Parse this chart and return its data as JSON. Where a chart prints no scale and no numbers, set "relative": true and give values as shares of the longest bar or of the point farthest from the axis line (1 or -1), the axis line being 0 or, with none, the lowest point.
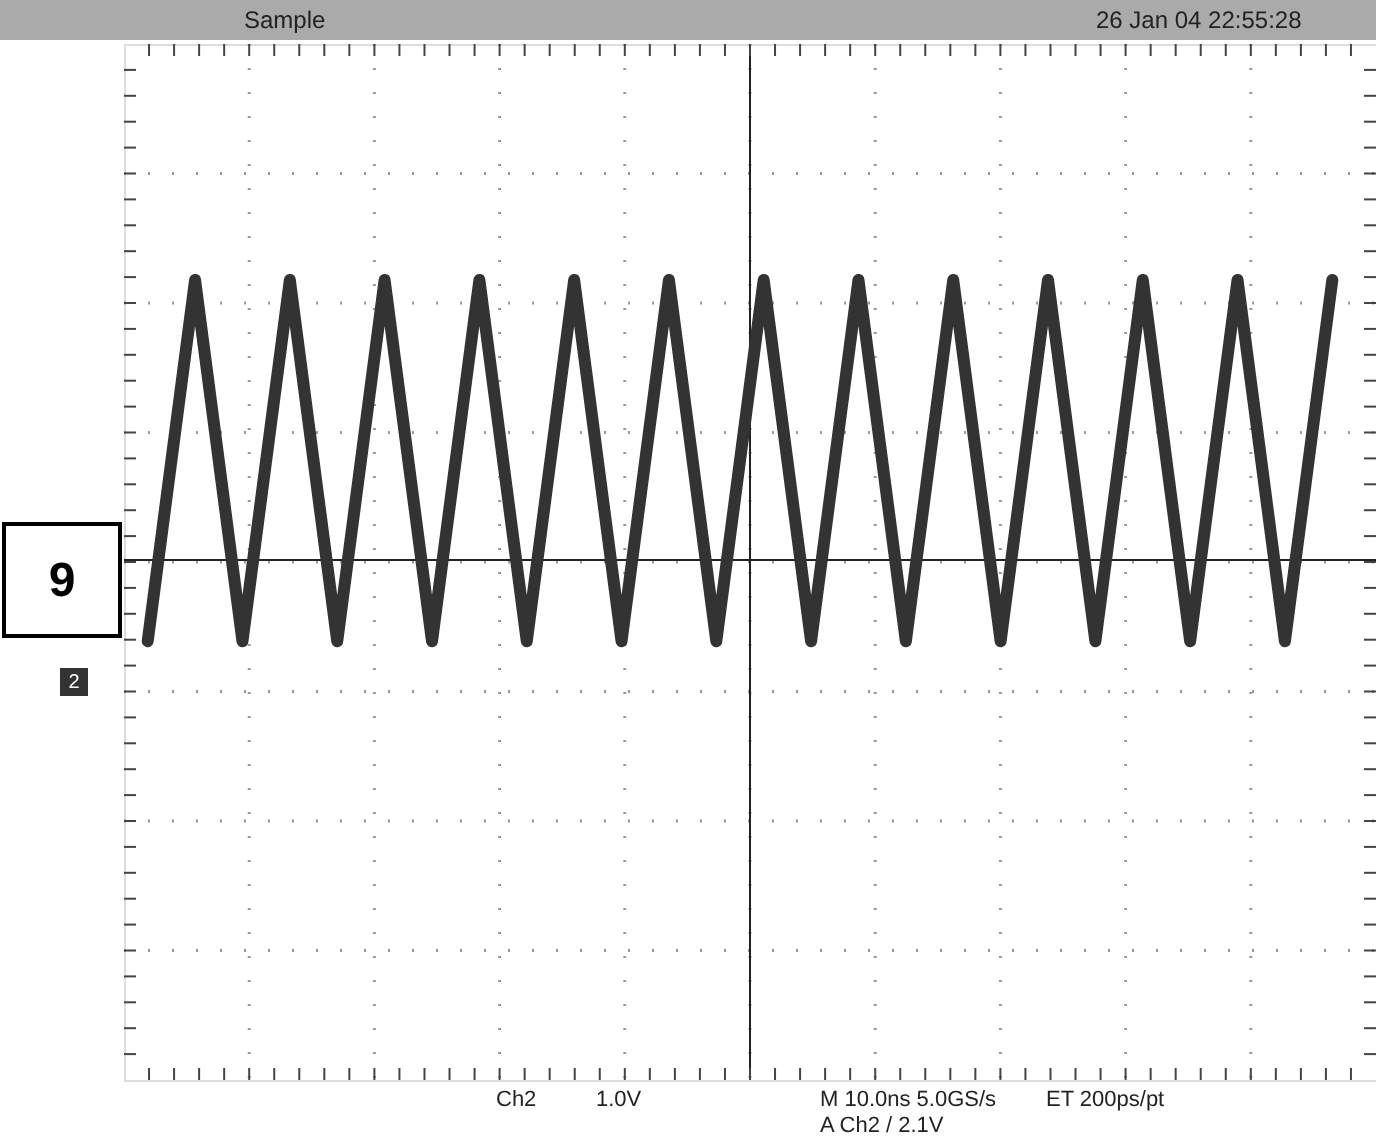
{
  "chart_data": {
    "type": "line",
    "relative": true,
    "grid": true,
    "color": "#333333",
    "categories": [
      null,
      null,
      null,
      null,
      null,
      null,
      null,
      null,
      null,
      null,
      null,
      null,
      null,
      null,
      null,
      null,
      null,
      null,
      null,
      null,
      null,
      null,
      null,
      null,
      null,
      null
    ],
    "values": [
      -0.29,
      1,
      -0.29,
      1,
      -0.29,
      1,
      -0.29,
      1,
      -0.29,
      1,
      -0.29,
      1,
      -0.29,
      1,
      -0.29,
      1,
      -0.29,
      1,
      -0.29,
      1,
      -0.29,
      1,
      -0.29,
      1,
      -0.29,
      1
    ],
    "annotations": [
      "Sample",
      "26 Jan 04 22:55:28",
      "Ch2",
      "1.0V",
      "M 10.0ns 5.0GS/s",
      "ET 200ps/pt",
      "A Ch2 / 2.1V",
      "9",
      "2"
    ]
  }
}
